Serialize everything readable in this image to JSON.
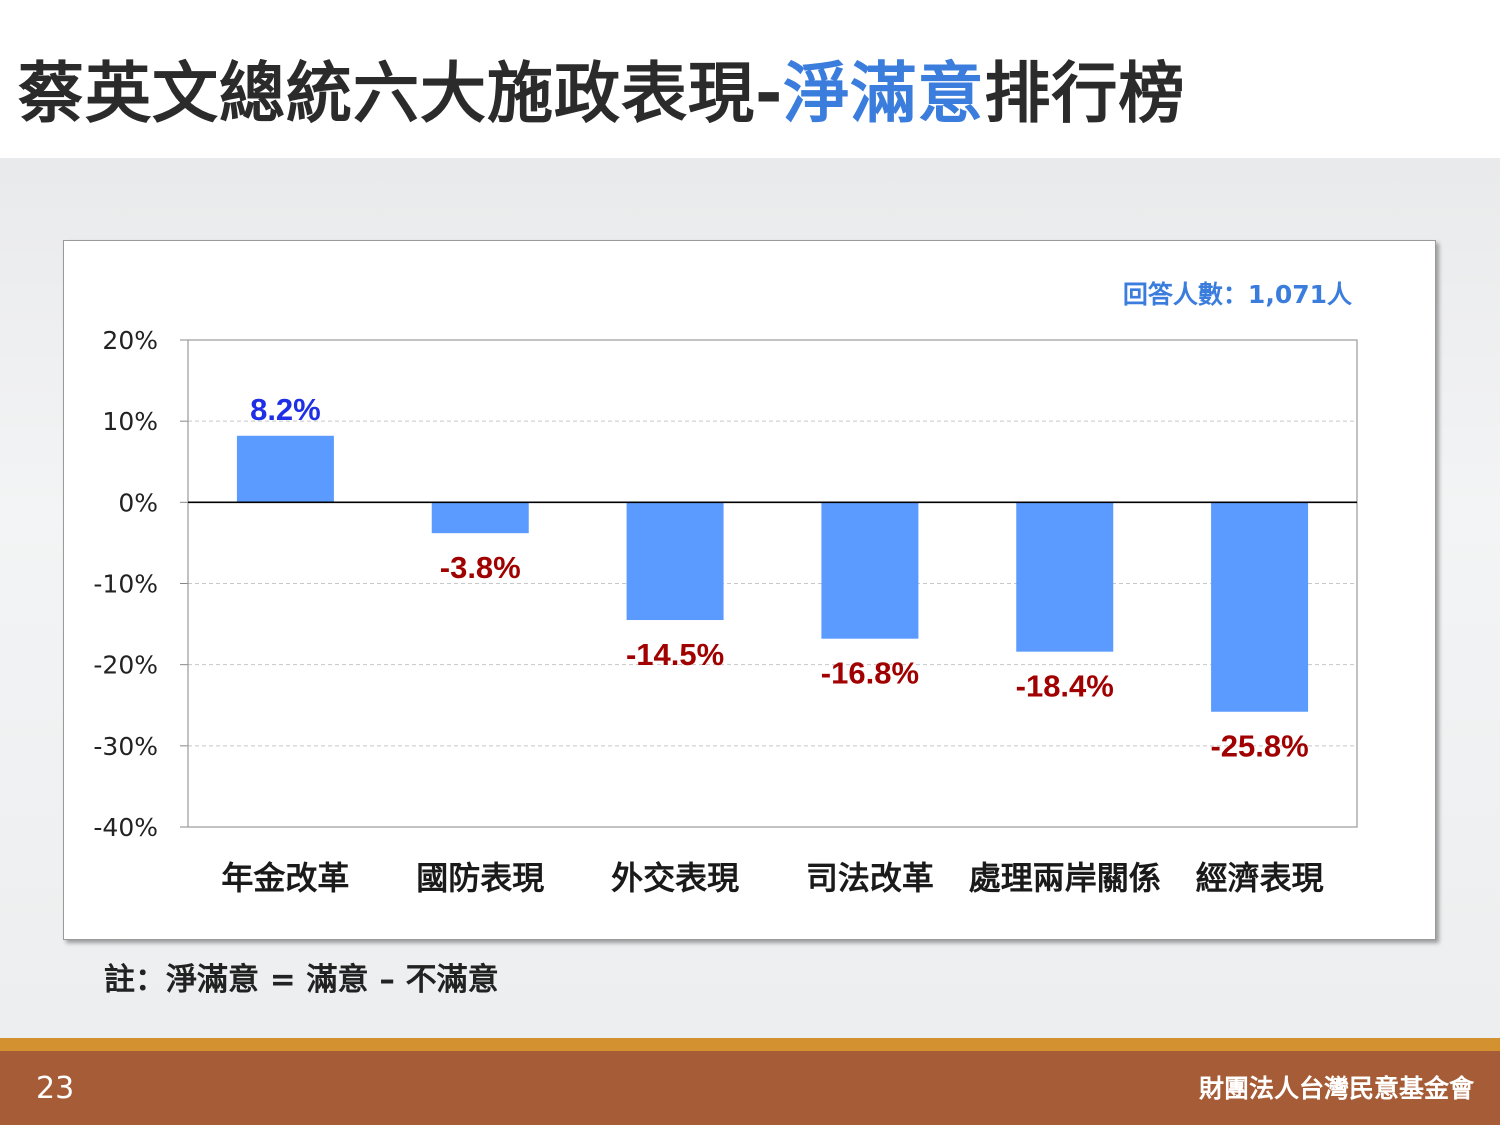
{
  "slide": {
    "title_main": "蔡英文總統六大施政表現-",
    "title_accent": "淨滿意",
    "title_tail": "排行榜",
    "note": "註：淨滿意 = 滿意 – 不滿意",
    "page_number": "23",
    "organization": "財團法人台灣民意基金會"
  },
  "colors": {
    "bar": "#5b9bff",
    "positive_label": "#1f2fe6",
    "negative_label": "#a00000",
    "accent": "#3b7ddd"
  },
  "chart_data": {
    "type": "bar",
    "annotation": "回答人數：1,071人",
    "categories": [
      "年金改革",
      "國防表現",
      "外交表現",
      "司法改革",
      "處理兩岸關係",
      "經濟表現"
    ],
    "values": [
      8.2,
      -3.8,
      -14.5,
      -16.8,
      -18.4,
      -25.8
    ],
    "data_labels": [
      "8.2%",
      "-3.8%",
      "-14.5%",
      "-16.8%",
      "-18.4%",
      "-25.8%"
    ],
    "yticks": [
      20,
      10,
      0,
      -10,
      -20,
      -30,
      -40
    ],
    "ytick_labels": [
      "20%",
      "10%",
      "0%",
      "-10%",
      "-20%",
      "-30%",
      "-40%"
    ],
    "ylim": [
      -40,
      20
    ],
    "grid": true
  }
}
